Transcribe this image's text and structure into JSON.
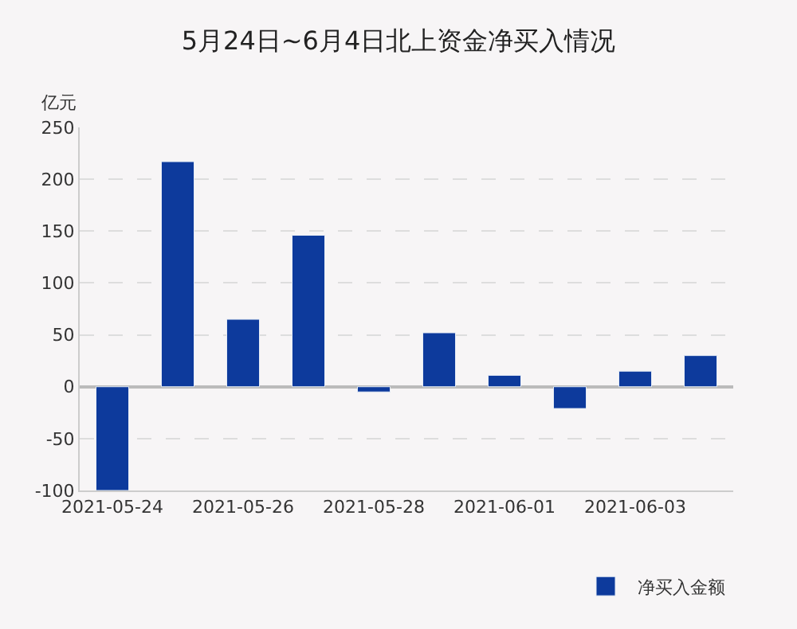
{
  "chart_data": {
    "type": "bar",
    "title": "5月24日~6月4日北上资金净买入情况",
    "ylabel": "亿元",
    "categories": [
      "2021-05-24",
      null,
      "2021-05-26",
      null,
      "2021-05-28",
      null,
      "2021-06-01",
      null,
      "2021-06-03",
      null
    ],
    "series": [
      {
        "name": "净买入金额",
        "color": "#0d3a9c",
        "values": [
          -100,
          217,
          65,
          146,
          -5,
          52,
          11,
          -21,
          15,
          30
        ]
      }
    ],
    "ylim": [
      -100,
      250
    ],
    "yticks": [
      -100,
      -50,
      0,
      50,
      100,
      150,
      200,
      250
    ],
    "grid": "y",
    "legend": "bottom right"
  }
}
